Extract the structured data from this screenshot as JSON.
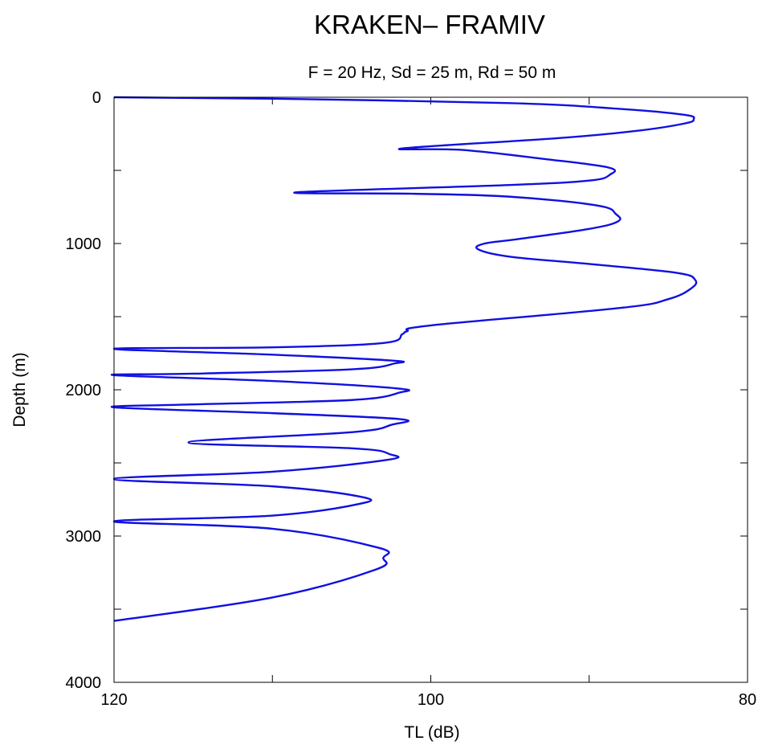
{
  "chart_data": {
    "type": "line",
    "title": "KRAKEN– FRAMIV",
    "subtitle": "F  =  20 Hz, Sd =  25 m,  Rd =  50 m",
    "xlabel": "TL (dB)",
    "ylabel": "Depth (m)",
    "xlim": [
      120,
      80
    ],
    "ylim": [
      0,
      4000
    ],
    "x_reversed": true,
    "y_reversed": true,
    "xticks": [
      120,
      100,
      80
    ],
    "xticks_minor": [
      110,
      90
    ],
    "yticks": [
      0,
      1000,
      2000,
      3000,
      4000
    ],
    "yticks_minor": [
      500,
      1500,
      2500,
      3500
    ],
    "grid": false,
    "series_color": "#1010e0",
    "series": [
      {
        "x_TL": [
          120,
          110,
          95,
          88,
          84,
          83.4,
          84,
          87,
          92,
          101.8,
          98,
          93,
          88.8,
          88.7,
          90,
          95,
          108.5,
          101,
          95,
          89.5,
          88.3,
          88.2,
          90,
          94.5,
          96.6,
          97,
          95,
          90,
          84.5,
          83.3,
          83.6,
          85,
          88,
          100,
          101.5,
          101.8,
          103,
          110,
          120,
          110,
          102.5,
          102.3,
          105,
          115,
          120,
          110,
          102.2,
          102.0,
          105,
          115,
          120,
          110,
          102,
          102.5,
          105,
          115.3,
          105,
          102.6,
          102.8,
          110,
          120,
          110,
          104.5,
          104.5,
          110,
          120,
          110,
          103.3,
          103.0,
          103.5,
          110,
          120
        ],
        "y_depth": [
          0,
          10,
          40,
          80,
          120,
          150,
          180,
          230,
          280,
          350,
          360,
          420,
          480,
          530,
          570,
          600,
          650,
          660,
          680,
          740,
          800,
          850,
          900,
          970,
          1000,
          1040,
          1090,
          1140,
          1200,
          1250,
          1310,
          1380,
          1440,
          1560,
          1600,
          1620,
          1680,
          1710,
          1720,
          1760,
          1800,
          1820,
          1860,
          1890,
          1900,
          1940,
          1990,
          2020,
          2070,
          2100,
          2120,
          2160,
          2200,
          2240,
          2290,
          2360,
          2400,
          2440,
          2480,
          2560,
          2610,
          2660,
          2730,
          2780,
          2860,
          2900,
          2950,
          3080,
          3150,
          3230,
          3420,
          3580
        ]
      }
    ]
  }
}
